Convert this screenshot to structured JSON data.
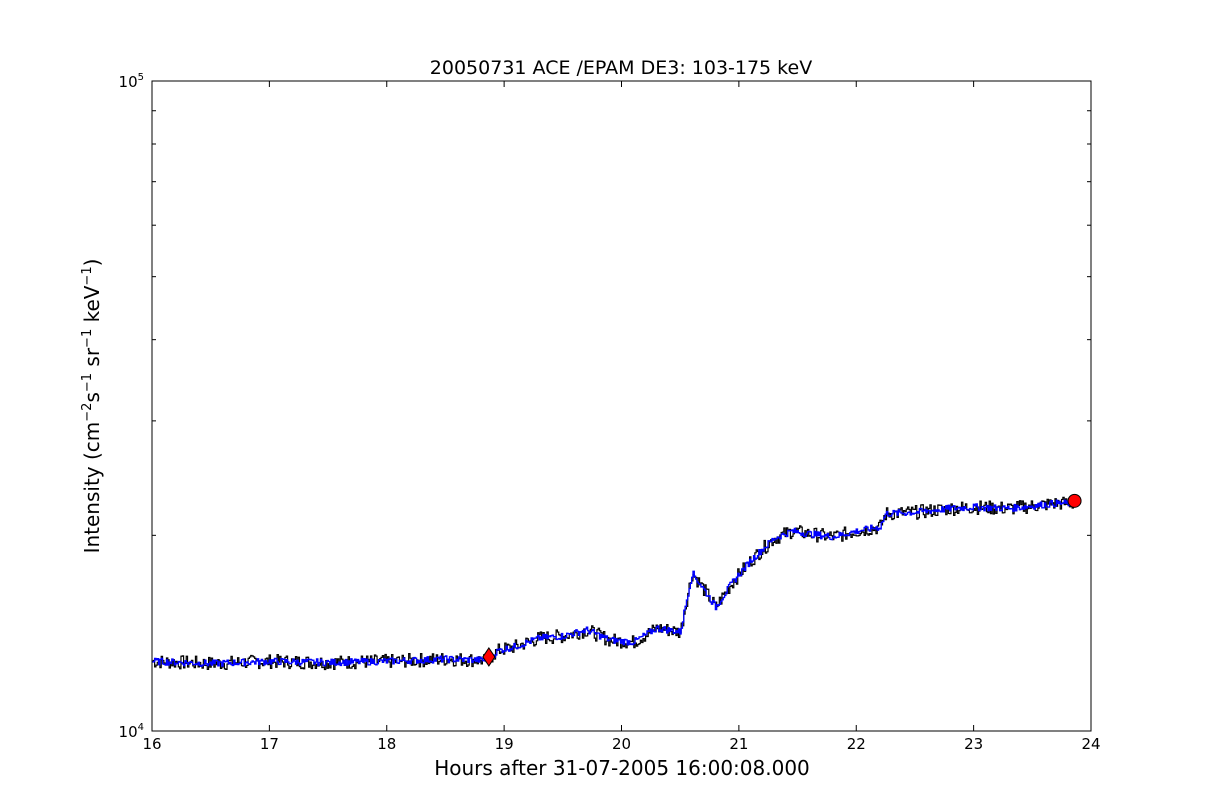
{
  "chart_data": {
    "type": "line",
    "title": "20050731 ACE /EPAM DE3: 103-175 keV",
    "xlabel": "Hours after 31-07-2005 16:00:08.000",
    "ylabel": {
      "prefix": "Intensity (cm",
      "exp1": "−2",
      "s": "s",
      "exp2": "−1",
      "sr": " sr",
      "exp3": "−1",
      "kev": " keV",
      "exp4": "−1",
      "suffix": ")"
    },
    "x_scale": "linear",
    "y_scale": "log",
    "xlim": [
      16,
      24
    ],
    "ylim": [
      10000,
      100000
    ],
    "x_ticks": [
      "16",
      "17",
      "18",
      "19",
      "20",
      "21",
      "22",
      "23",
      "24"
    ],
    "y_ticks": [
      {
        "value": 10000,
        "base": "10",
        "exp": "4"
      },
      {
        "value": 100000,
        "base": "10",
        "exp": "5"
      }
    ],
    "grid": false,
    "series": [
      {
        "role": "raw",
        "color": "#000000",
        "x": [
          16.0,
          16.5,
          17.0,
          17.5,
          18.0,
          18.5,
          18.85,
          18.95,
          19.1,
          19.3,
          19.5,
          19.7,
          19.9,
          20.1,
          20.3,
          20.5,
          20.6,
          20.7,
          20.8,
          20.95,
          21.1,
          21.3,
          21.45,
          21.6,
          21.8,
          22.0,
          22.2,
          22.25,
          22.5,
          22.8,
          23.0,
          23.3,
          23.5,
          23.7,
          23.85
        ],
        "y": [
          12800,
          12700,
          12800,
          12750,
          12800,
          12900,
          12850,
          13300,
          13500,
          13900,
          14000,
          14300,
          13800,
          13700,
          14400,
          14200,
          17500,
          16500,
          15500,
          17000,
          18300,
          19800,
          20300,
          20100,
          19900,
          20300,
          20600,
          21600,
          21700,
          22000,
          22100,
          22000,
          22200,
          22400,
          22400
        ]
      },
      {
        "role": "smoothed",
        "color": "#0000ff",
        "x": [
          16.0,
          16.5,
          17.0,
          17.5,
          18.0,
          18.5,
          18.85,
          18.95,
          19.1,
          19.3,
          19.5,
          19.7,
          19.9,
          20.1,
          20.3,
          20.5,
          20.6,
          20.7,
          20.8,
          20.95,
          21.1,
          21.3,
          21.45,
          21.6,
          21.8,
          22.0,
          22.2,
          22.25,
          22.5,
          22.8,
          23.0,
          23.3,
          23.5,
          23.7,
          23.85
        ],
        "y": [
          12800,
          12700,
          12800,
          12750,
          12800,
          12900,
          12850,
          13300,
          13500,
          13900,
          14000,
          14300,
          13800,
          13700,
          14400,
          14200,
          17500,
          16500,
          15500,
          17000,
          18300,
          19800,
          20300,
          20100,
          19900,
          20300,
          20600,
          21600,
          21700,
          22000,
          22100,
          22000,
          22200,
          22400,
          22400
        ]
      }
    ],
    "markers": [
      {
        "shape": "diamond",
        "color": "#ff0000",
        "x": 18.87,
        "y": 13000
      },
      {
        "shape": "circle",
        "color": "#ff0000",
        "x": 23.86,
        "y": 22600
      }
    ]
  }
}
